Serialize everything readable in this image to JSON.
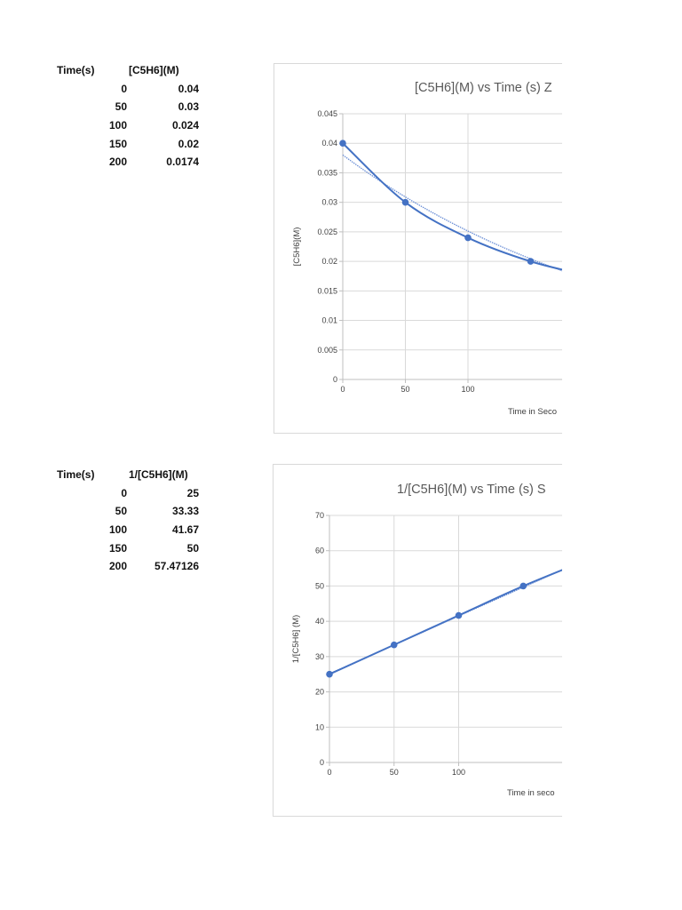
{
  "table1": {
    "headers": [
      "Time(s)",
      "[C5H6](M)"
    ],
    "rows": [
      [
        "0",
        "0.04"
      ],
      [
        "50",
        "0.03"
      ],
      [
        "100",
        "0.024"
      ],
      [
        "150",
        "0.02"
      ],
      [
        "200",
        "0.0174"
      ]
    ]
  },
  "table2": {
    "headers": [
      "Time(s)",
      "1/[C5H6](M)"
    ],
    "rows": [
      [
        "0",
        "25"
      ],
      [
        "50",
        "33.33"
      ],
      [
        "100",
        "41.67"
      ],
      [
        "150",
        "50"
      ],
      [
        "200",
        "57.47126"
      ]
    ]
  },
  "chart_data": [
    {
      "type": "line",
      "title": "[C5H6](M) vs Time (s) Z",
      "xlabel": "Time in Seco",
      "ylabel": "[C5H6](M)",
      "x": [
        0,
        50,
        100,
        150,
        200
      ],
      "series": [
        {
          "values": [
            0.04,
            0.03,
            0.024,
            0.02,
            0.0174
          ]
        }
      ],
      "trendline": "exponential",
      "xticks": [
        "0",
        "50",
        "100"
      ],
      "yticks": [
        "0",
        "0.005",
        "0.01",
        "0.015",
        "0.02",
        "0.025",
        "0.03",
        "0.035",
        "0.04",
        "0.045"
      ],
      "xlim": [
        0,
        200
      ],
      "ylim": [
        0,
        0.045
      ],
      "grid": true,
      "colors": {
        "line": "#4472c4",
        "trend": "#6b8fd6"
      }
    },
    {
      "type": "line",
      "title": "1/[C5H6](M) vs Time (s) S",
      "xlabel": "Time in seco",
      "ylabel": "1/[C5H6] (M)",
      "x": [
        0,
        50,
        100,
        150,
        200
      ],
      "series": [
        {
          "values": [
            25,
            33.33,
            41.67,
            50,
            57.47126
          ]
        }
      ],
      "trendline": "linear",
      "xticks": [
        "0",
        "50",
        "100"
      ],
      "yticks": [
        "0",
        "10",
        "20",
        "30",
        "40",
        "50",
        "60",
        "70"
      ],
      "xlim": [
        0,
        200
      ],
      "ylim": [
        0,
        70
      ],
      "grid": true,
      "colors": {
        "line": "#4472c4",
        "trend": "#6b8fd6"
      }
    }
  ]
}
